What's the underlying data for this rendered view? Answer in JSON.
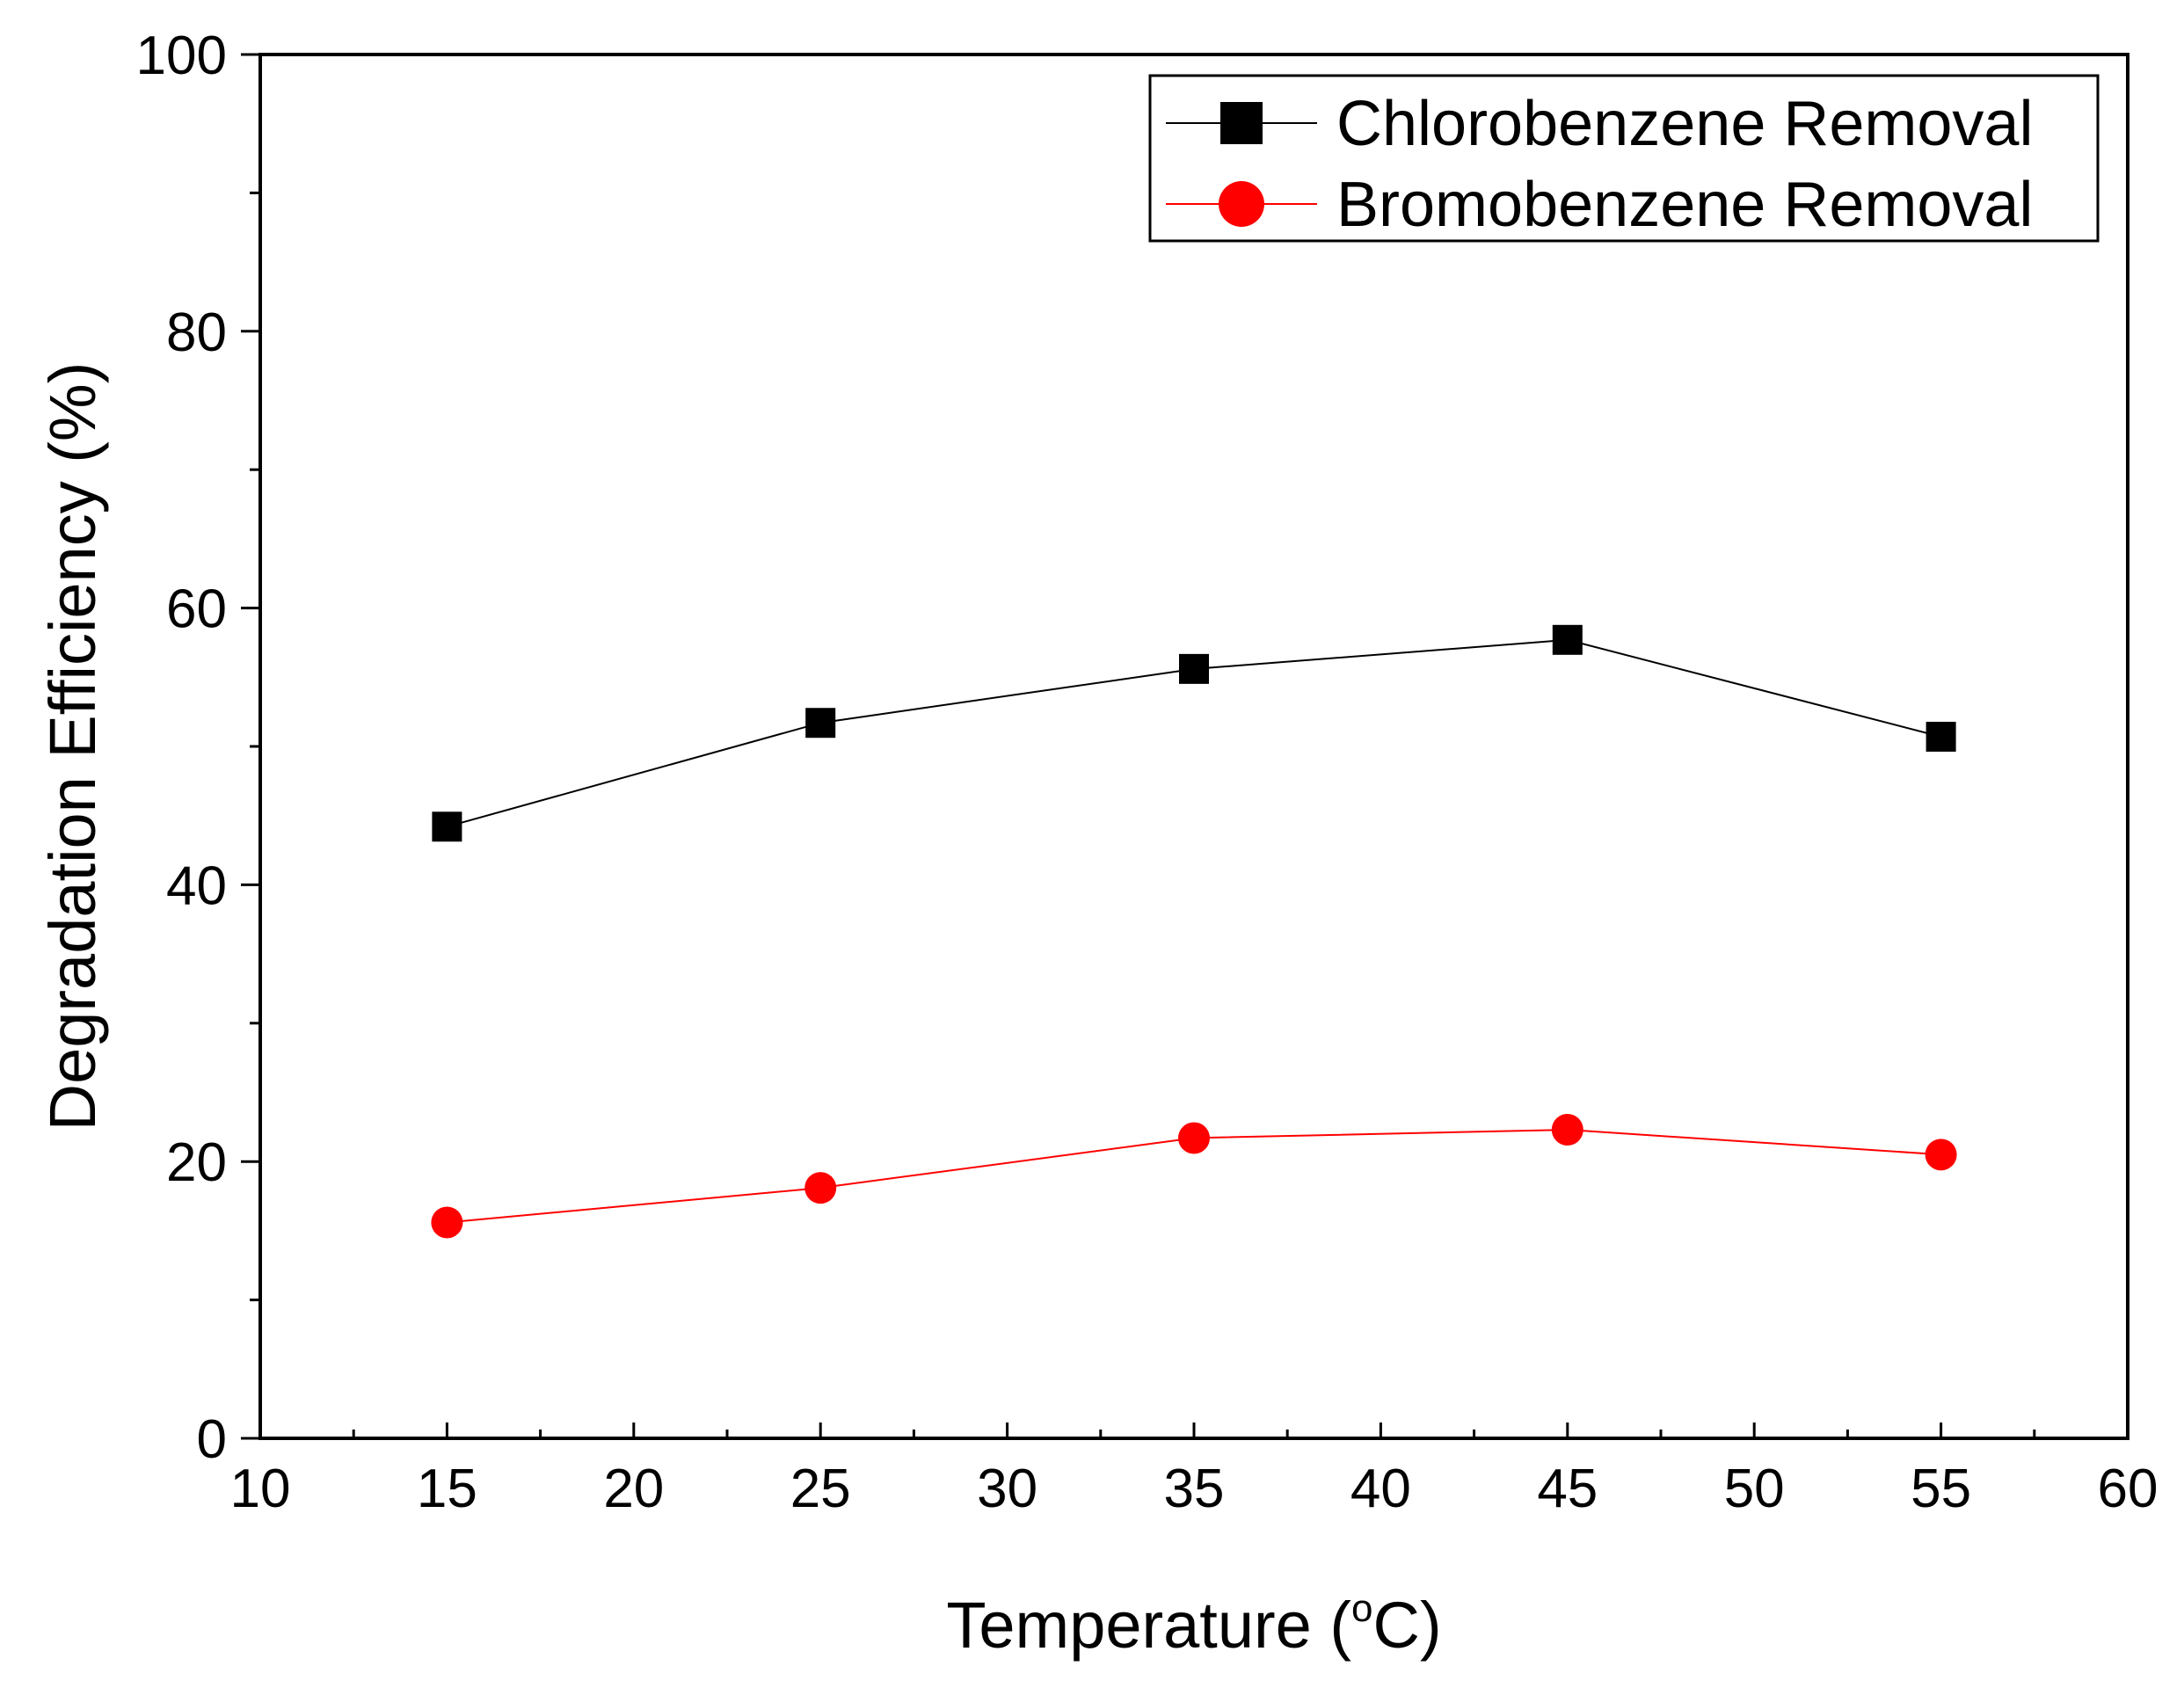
{
  "chart_data": {
    "type": "line",
    "title": "",
    "xlabel": "Temperature (",
    "xlabel_degree": "o",
    "xlabel_unit": "C)",
    "ylabel": "Degradation Efficiency (%)",
    "xlim": [
      10,
      60
    ],
    "ylim": [
      0,
      100
    ],
    "x_ticks": [
      10,
      15,
      20,
      25,
      30,
      35,
      40,
      45,
      50,
      55,
      60
    ],
    "x_tick_labels": [
      "10",
      "15",
      "20",
      "25",
      "30",
      "35",
      "40",
      "45",
      "50",
      "55",
      "60"
    ],
    "y_ticks": [
      0,
      20,
      40,
      60,
      80,
      100
    ],
    "y_tick_labels": [
      "0",
      "20",
      "40",
      "60",
      "80",
      "100"
    ],
    "grid": false,
    "legend_position": "top-right",
    "x": [
      15,
      25,
      35,
      45,
      55
    ],
    "series": [
      {
        "name": "Chlorobenzene Removal",
        "values": [
          44.2,
          51.7,
          55.6,
          57.7,
          50.7
        ],
        "color": "#000000",
        "marker": "square"
      },
      {
        "name": "Bromobenzene Removal",
        "values": [
          15.6,
          18.1,
          21.7,
          22.3,
          20.5
        ],
        "color": "#ff0000",
        "marker": "circle"
      }
    ]
  }
}
